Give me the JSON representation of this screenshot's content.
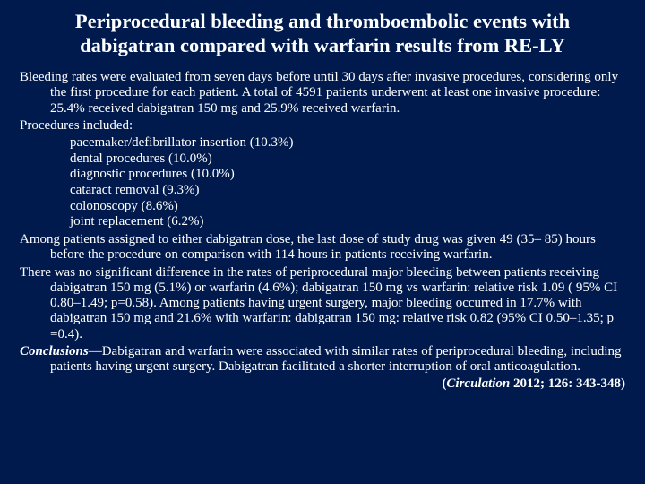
{
  "colors": {
    "background": "#001a4d",
    "text": "#ffffff"
  },
  "typography": {
    "title_fontsize_pt": 17,
    "body_fontsize_pt": 11.5,
    "font_family": "Times New Roman"
  },
  "title": "Periprocedural bleeding and thromboembolic events with dabigatran compared with warfarin results from RE-LY",
  "para1": "Bleeding rates were evaluated from seven days before until 30 days after invasive procedures, considering only the first procedure for each patient. A total of 4591 patients underwent at least one invasive procedure: 25.4% received dabigatran 150 mg and 25.9% received warfarin.",
  "para2": "Procedures included:",
  "procedures": [
    "pacemaker/defibrillator insertion (10.3%)",
    "dental procedures (10.0%)",
    "diagnostic procedures (10.0%)",
    "cataract removal (9.3%)",
    "colonoscopy (8.6%)",
    "joint replacement (6.2%)"
  ],
  "para3": "Among patients assigned to either dabigatran dose, the last dose of study drug was given 49 (35– 85) hours before the procedure on comparison with 114 hours in patients receiving warfarin.",
  "para4": "There was no significant difference in the rates of periprocedural major bleeding between patients receiving dabigatran 150 mg (5.1%) or warfarin (4.6%); dabigatran 150 mg vs warfarin: relative risk 1.09 ( 95% CI 0.80–1.49; p=0.58). Among patients having urgent surgery, major bleeding occurred in 17.7% with dabigatran 150 mg and 21.6% with warfarin: dabigatran 150 mg: relative risk 0.82 (95% CI 0.50–1.35; p =0.4).",
  "concl_label": "Conclusions",
  "concl_text": "—Dabigatran and warfarin were associated with similar rates of periprocedural bleeding, including patients having urgent surgery. Dabigatran facilitated a shorter interruption of oral anticoagulation.",
  "citation_journal": "Circulation",
  "citation_rest": " 2012; 126: 343-348)",
  "citation_open": "("
}
